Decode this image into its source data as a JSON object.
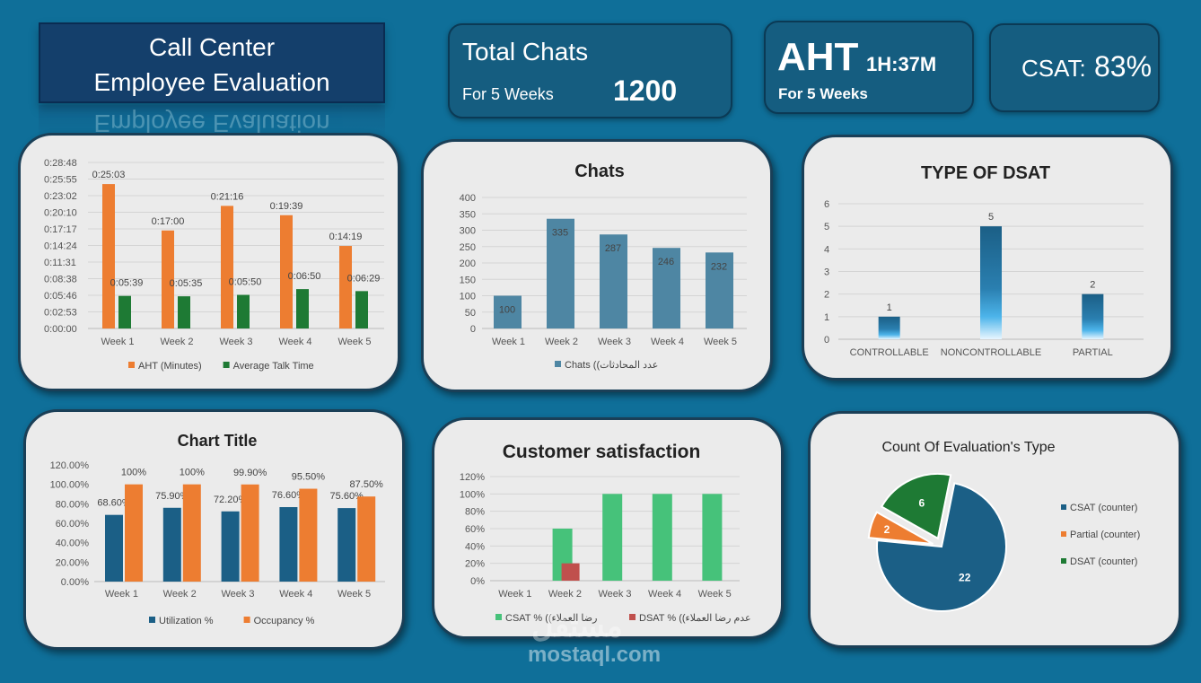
{
  "header": {
    "title_line1": "Call Center",
    "title_line2": "Employee Evaluation"
  },
  "kpis": {
    "total_chats": {
      "label": "Total Chats",
      "sublabel": "For 5 Weeks",
      "value": "1200"
    },
    "aht": {
      "label": "AHT",
      "value": "1H:37M",
      "sublabel": "For 5 Weeks"
    },
    "csat": {
      "label": "CSAT:",
      "value": "83%"
    }
  },
  "colors": {
    "orange": "#ed7d31",
    "green": "#1e7a34",
    "steel": "#4e86a3",
    "navy": "#1b5f86",
    "csat_green": "#46c27a",
    "dsat_red": "#c0504d"
  },
  "watermark": {
    "arabic": "مستقل",
    "text": "mostaql.com"
  },
  "chart_data": [
    {
      "id": "aht_talk",
      "type": "bar",
      "title": "",
      "categories": [
        "Week 1",
        "Week 2",
        "Week 3",
        "Week 4",
        "Week 5"
      ],
      "yticks": [
        "0:00:00",
        "0:02:53",
        "0:05:46",
        "0:08:38",
        "0:11:31",
        "0:14:24",
        "0:17:17",
        "0:20:10",
        "0:23:02",
        "0:25:55",
        "0:28:48"
      ],
      "ylim_seconds": [
        0,
        1728
      ],
      "series": [
        {
          "name": "AHT (Minutes)",
          "values_seconds": [
            1503,
            1020,
            1276,
            1179,
            859
          ],
          "labels": [
            "0:25:03",
            "0:17:00",
            "0:21:16",
            "0:19:39",
            "0:14:19"
          ]
        },
        {
          "name": "Average Talk Time",
          "values_seconds": [
            339,
            335,
            350,
            410,
            389
          ],
          "labels": [
            "0:05:39",
            "0:05:35",
            "0:05:50",
            "0:06:50",
            "0:06:29"
          ]
        }
      ],
      "legend": "bottom",
      "grid": true
    },
    {
      "id": "chats",
      "type": "bar",
      "title": "Chats",
      "categories": [
        "Week 1",
        "Week 2",
        "Week 3",
        "Week 4",
        "Week 5"
      ],
      "yticks": [
        "0",
        "50",
        "100",
        "150",
        "200",
        "250",
        "300",
        "350",
        "400"
      ],
      "ylim": [
        0,
        400
      ],
      "series": [
        {
          "name": "Chats ((عدد المحادثات",
          "values": [
            100,
            335,
            287,
            246,
            232
          ]
        }
      ],
      "legend": "bottom",
      "grid": true
    },
    {
      "id": "dsat_type",
      "type": "bar",
      "title": "TYPE OF DSAT",
      "categories": [
        "CONTROLLABLE",
        "NONCONTROLLABLE",
        "PARTIAL"
      ],
      "yticks": [
        "0",
        "1",
        "2",
        "3",
        "4",
        "5",
        "6"
      ],
      "ylim": [
        0,
        6
      ],
      "series": [
        {
          "values": [
            1,
            5,
            2
          ]
        }
      ],
      "grid": true
    },
    {
      "id": "utilization",
      "type": "bar",
      "title": "Chart Title",
      "categories": [
        "Week 1",
        "Week 2",
        "Week 3",
        "Week 4",
        "Week 5"
      ],
      "yticks": [
        "0.00%",
        "20.00%",
        "40.00%",
        "60.00%",
        "80.00%",
        "100.00%",
        "120.00%"
      ],
      "ylim": [
        0,
        120
      ],
      "series": [
        {
          "name": "Utilization %",
          "values": [
            68.6,
            75.9,
            72.2,
            76.6,
            75.6
          ],
          "labels": [
            "68.60%",
            "75.90%",
            "72.20%",
            "76.60%",
            "75.60%"
          ]
        },
        {
          "name": "Occupancy %",
          "values": [
            100,
            100,
            99.9,
            95.5,
            87.5
          ],
          "labels": [
            "100%",
            "100%",
            "99.90%",
            "95.50%",
            "87.50%"
          ]
        }
      ],
      "legend": "bottom",
      "grid": false
    },
    {
      "id": "satisfaction",
      "type": "bar",
      "title": "Customer satisfaction",
      "categories": [
        "Week 1",
        "Week 2",
        "Week 3",
        "Week 4",
        "Week 5"
      ],
      "yticks": [
        "0%",
        "20%",
        "40%",
        "60%",
        "80%",
        "100%",
        "120%"
      ],
      "ylim": [
        0,
        120
      ],
      "series": [
        {
          "name": "CSAT % ((رضا العملاء",
          "values": [
            0,
            60,
            100,
            100,
            100
          ]
        },
        {
          "name": "DSAT % ((عدم رضا العملاء",
          "values": [
            0,
            20,
            0,
            0,
            0
          ]
        }
      ],
      "legend": "bottom",
      "grid": true
    },
    {
      "id": "eval_type",
      "type": "pie",
      "title": "Count Of Evaluation's Type",
      "slices": [
        {
          "name": "CSAT (counter)",
          "value": 22
        },
        {
          "name": "Partial (counter)",
          "value": 2
        },
        {
          "name": "DSAT (counter)",
          "value": 6
        }
      ],
      "legend": "right"
    }
  ]
}
